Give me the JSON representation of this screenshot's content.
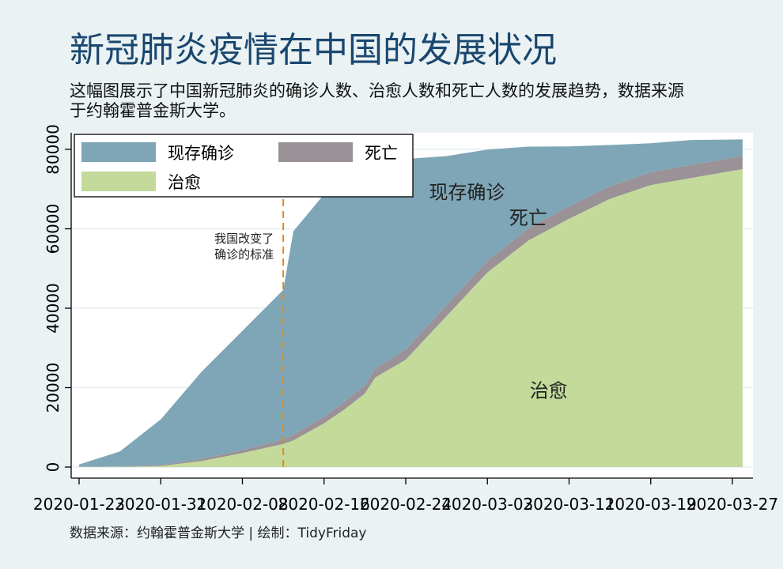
{
  "title": "新冠肺炎疫情在中国的发展状况",
  "subtitle_lines": [
    "这幅图展示了中国新冠肺炎的确诊人数、治愈人数和死亡人数的发展趋势，数据来源",
    "于约翰霍普金斯大学。"
  ],
  "caption": "数据来源：约翰霍普金斯大学 | 绘制：TidyFriday",
  "colors": {
    "background": "#eaf2f3",
    "active": "#7fa6b7",
    "deaths": "#9a9297",
    "recovered": "#c3da9b",
    "vline": "#e08a1e",
    "title": "#1a476f"
  },
  "chart_data": {
    "type": "area",
    "stacked": true,
    "x_ticks": [
      "2020-01-23",
      "2020-01-31",
      "2020-02-08",
      "2020-02-16",
      "2020-02-24",
      "2020-03-03",
      "2020-03-11",
      "2020-03-19",
      "2020-03-27"
    ],
    "y_ticks": [
      0,
      20000,
      40000,
      60000,
      80000
    ],
    "y_tick_labels": [
      "0",
      "20000",
      "40000",
      "60000",
      "80000"
    ],
    "ylim": [
      0,
      82000
    ],
    "x_range": [
      "2020-01-23",
      "2020-03-28"
    ],
    "grid": "horizontal",
    "legend_position": "top-left",
    "legend": [
      {
        "key": "active",
        "label": "现存确诊"
      },
      {
        "key": "deaths",
        "label": "死亡"
      },
      {
        "key": "recovered",
        "label": "治愈"
      }
    ],
    "series": [
      {
        "name": "治愈",
        "key": "recovered",
        "x": [
          "2020-01-23",
          "2020-01-27",
          "2020-01-31",
          "2020-02-04",
          "2020-02-08",
          "2020-02-12",
          "2020-02-13",
          "2020-02-16",
          "2020-02-18",
          "2020-02-20",
          "2020-02-21",
          "2020-02-24",
          "2020-02-28",
          "2020-03-03",
          "2020-03-07",
          "2020-03-11",
          "2020-03-15",
          "2020-03-19",
          "2020-03-23",
          "2020-03-28"
        ],
        "values": [
          30,
          60,
          250,
          1500,
          3500,
          5800,
          6700,
          11000,
          14500,
          18500,
          22500,
          27000,
          38000,
          49000,
          57000,
          62500,
          67500,
          71000,
          72800,
          75000
        ]
      },
      {
        "name": "死亡",
        "key": "deaths",
        "x": [
          "2020-01-23",
          "2020-01-27",
          "2020-01-31",
          "2020-02-04",
          "2020-02-08",
          "2020-02-12",
          "2020-02-13",
          "2020-02-16",
          "2020-02-18",
          "2020-02-20",
          "2020-02-21",
          "2020-02-24",
          "2020-02-28",
          "2020-03-03",
          "2020-03-07",
          "2020-03-11",
          "2020-03-15",
          "2020-03-19",
          "2020-03-23",
          "2020-03-28"
        ],
        "values": [
          20,
          80,
          260,
          500,
          800,
          1100,
          1400,
          1700,
          1900,
          2200,
          2300,
          2600,
          2800,
          2950,
          3100,
          3150,
          3200,
          3250,
          3270,
          3300
        ]
      },
      {
        "name": "现存确诊",
        "key": "active",
        "x": [
          "2020-01-23",
          "2020-01-27",
          "2020-01-31",
          "2020-02-04",
          "2020-02-08",
          "2020-02-12",
          "2020-02-13",
          "2020-02-16",
          "2020-02-18",
          "2020-02-20",
          "2020-02-21",
          "2020-02-24",
          "2020-02-28",
          "2020-03-03",
          "2020-03-07",
          "2020-03-11",
          "2020-03-15",
          "2020-03-19",
          "2020-03-23",
          "2020-03-28"
        ],
        "values": [
          600,
          3800,
          11500,
          22000,
          30000,
          37700,
          51300,
          56000,
          58000,
          53000,
          50000,
          48000,
          37500,
          28000,
          20600,
          15100,
          10400,
          7300,
          6300,
          4200
        ]
      }
    ],
    "annotations": [
      {
        "text": "现存确诊",
        "x": "2020-03-01",
        "y": 69000
      },
      {
        "text": "死亡",
        "x": "2020-03-07",
        "y": 62500
      },
      {
        "text": "治愈",
        "x": "2020-03-09",
        "y": 19000
      }
    ],
    "vline": {
      "x": "2020-02-12",
      "label_lines": [
        "我国改变了",
        "确诊的标准"
      ]
    }
  }
}
